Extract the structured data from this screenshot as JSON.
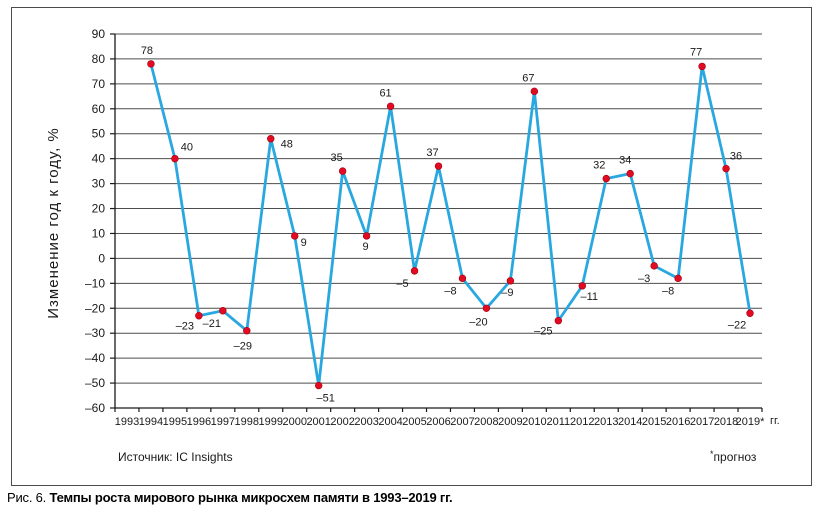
{
  "figure": {
    "caption_prefix": "Рис. 6.",
    "caption_text": "Темпы роста мирового рынка микросхем памяти в 1993–2019 гг.",
    "source_label": "Источник: IC Insights",
    "footnote_star": "*",
    "footnote_text": "прогноз"
  },
  "chart_data": {
    "type": "line",
    "title": "",
    "xlabel": "",
    "ylabel": "Изменение год к году, %",
    "x_axis_unit": "гг.",
    "ylim": [
      -60,
      90
    ],
    "ytick_step": 10,
    "grid": true,
    "legend": false,
    "line_color": "#29A8E0",
    "marker_color": "#E30B22",
    "marker_edge_color": "#9E0012",
    "gridline_color": "#4d4d4d",
    "axis_color": "#1a1a1a",
    "categories": [
      "1993",
      "1994",
      "1995",
      "1996",
      "1997",
      "1998",
      "1999",
      "2000",
      "2001",
      "2002",
      "2003",
      "2004",
      "2005",
      "2006",
      "2007",
      "2008",
      "2009",
      "2010",
      "2011",
      "2012",
      "2013",
      "2014",
      "2015",
      "2016",
      "2017",
      "2018",
      "2019*"
    ],
    "series": [
      {
        "name": "Изменение год к году, %",
        "points": [
          {
            "year": "1994",
            "value": 78,
            "dx": -4,
            "dy": -10
          },
          {
            "year": "1995",
            "value": 40,
            "dx": 12,
            "dy": -8
          },
          {
            "year": "1996",
            "value": -23,
            "dx": -14,
            "dy": 14
          },
          {
            "year": "1997",
            "value": -21,
            "dx": -11,
            "dy": 16
          },
          {
            "year": "1998",
            "value": -29,
            "dx": -4,
            "dy": 19
          },
          {
            "year": "1999",
            "value": 48,
            "dx": 16,
            "dy": 9
          },
          {
            "year": "2000",
            "value": 9,
            "dx": 9,
            "dy": 10
          },
          {
            "year": "2001",
            "value": -51,
            "dx": 7,
            "dy": 16
          },
          {
            "year": "2002",
            "value": 35,
            "dx": -6,
            "dy": -10
          },
          {
            "year": "2003",
            "value": 9,
            "dx": -1,
            "dy": 14
          },
          {
            "year": "2004",
            "value": 61,
            "dx": -5,
            "dy": -10
          },
          {
            "year": "2005",
            "value": -5,
            "dx": -12,
            "dy": 16
          },
          {
            "year": "2006",
            "value": 37,
            "dx": -6,
            "dy": -10
          },
          {
            "year": "2007",
            "value": -8,
            "dx": -12,
            "dy": 16
          },
          {
            "year": "2008",
            "value": -20,
            "dx": -8,
            "dy": 17
          },
          {
            "year": "2009",
            "value": -9,
            "dx": -3,
            "dy": 15
          },
          {
            "year": "2010",
            "value": 67,
            "dx": -6,
            "dy": -10
          },
          {
            "year": "2011",
            "value": -25,
            "dx": -15,
            "dy": 14
          },
          {
            "year": "2012",
            "value": -11,
            "dx": 7,
            "dy": 14
          },
          {
            "year": "2013",
            "value": 32,
            "dx": -7,
            "dy": -10
          },
          {
            "year": "2014",
            "value": 34,
            "dx": -5,
            "dy": -10
          },
          {
            "year": "2015",
            "value": -3,
            "dx": -10,
            "dy": 16
          },
          {
            "year": "2016",
            "value": -8,
            "dx": -10,
            "dy": 16
          },
          {
            "year": "2017",
            "value": 77,
            "dx": -6,
            "dy": -11
          },
          {
            "year": "2018",
            "value": 36,
            "dx": 10,
            "dy": -9
          },
          {
            "year": "2019*",
            "value": -22,
            "dx": -13,
            "dy": 15
          }
        ]
      }
    ]
  }
}
